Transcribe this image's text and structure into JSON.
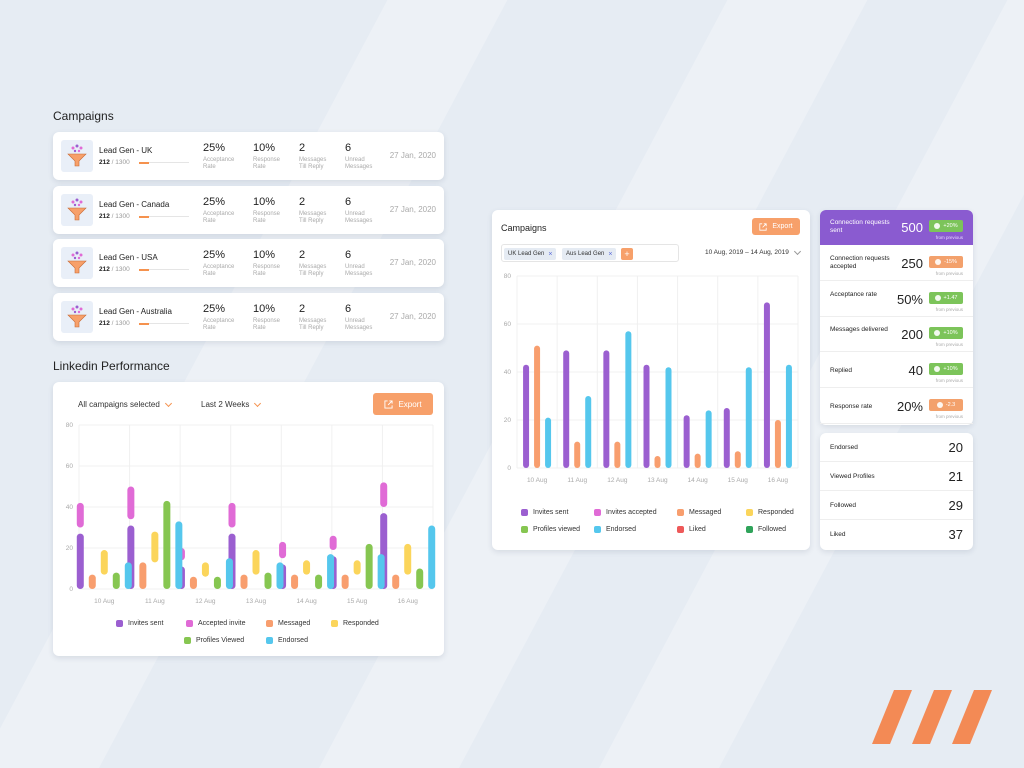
{
  "colors": {
    "invites": "#9b5fd0",
    "accepted": "#e06bd6",
    "messaged": "#f89e6e",
    "responded": "#fbd55b",
    "profiles": "#86c651",
    "endorsed": "#55c7ed",
    "liked": "#ee5959",
    "followed": "#2fa35a",
    "accent": "#f7a06a",
    "purple_header": "#8a5bd0"
  },
  "campaigns_section": {
    "title": "Campaigns",
    "rows": [
      {
        "name": "Lead Gen - UK",
        "count": "212",
        "total": "/ 1300",
        "s1v": "25%",
        "s1l1": "Acceptance",
        "s1l2": "Rate",
        "s2v": "10%",
        "s2l1": "Response",
        "s2l2": "Rate",
        "s3v": "2",
        "s3l1": "Messages",
        "s3l2": "Till Reply",
        "s4v": "6",
        "s4l1": "Unread",
        "s4l2": "Messages",
        "date": "27 Jan, 2020"
      },
      {
        "name": "Lead Gen - Canada",
        "count": "212",
        "total": "/ 1300",
        "s1v": "25%",
        "s1l1": "Acceptance",
        "s1l2": "Rate",
        "s2v": "10%",
        "s2l1": "Response",
        "s2l2": "Rate",
        "s3v": "2",
        "s3l1": "Messages",
        "s3l2": "Till Reply",
        "s4v": "6",
        "s4l1": "Unread",
        "s4l2": "Messages",
        "date": "27 Jan, 2020"
      },
      {
        "name": "Lead Gen - USA",
        "count": "212",
        "total": "/ 1300",
        "s1v": "25%",
        "s1l1": "Acceptance",
        "s1l2": "Rate",
        "s2v": "10%",
        "s2l1": "Response",
        "s2l2": "Rate",
        "s3v": "2",
        "s3l1": "Messages",
        "s3l2": "Till Reply",
        "s4v": "6",
        "s4l1": "Unread",
        "s4l2": "Messages",
        "date": "27 Jan, 2020"
      },
      {
        "name": "Lead Gen - Australia",
        "count": "212",
        "total": "/ 1300",
        "s1v": "25%",
        "s1l1": "Acceptance",
        "s1l2": "Rate",
        "s2v": "10%",
        "s2l1": "Response",
        "s2l2": "Rate",
        "s3v": "2",
        "s3l1": "Messages",
        "s3l2": "Till Reply",
        "s4v": "6",
        "s4l1": "Unread",
        "s4l2": "Messages",
        "date": "27 Jan, 2020"
      }
    ]
  },
  "linkedin_section": {
    "title": "Linkedin Performance",
    "filter_campaigns": "All campaigns selected",
    "filter_period": "Last 2 Weeks",
    "export_label": "Export"
  },
  "campaigns_panel": {
    "title": "Campaigns",
    "export_label": "Export",
    "chips": [
      "UK Lead Gen",
      "Aus Lead Gen"
    ],
    "add_label": "+",
    "date_range": "10 Aug, 2019 – 14 Aug, 2019"
  },
  "metrics": [
    {
      "label": "Connection requests sent",
      "value": "500",
      "badge": "+20%",
      "note": "from previous",
      "trend": "up"
    },
    {
      "label": "Connection requests accepted",
      "value": "250",
      "badge": "-15%",
      "note": "from previous",
      "trend": "down"
    },
    {
      "label": "Acceptance rate",
      "value": "50%",
      "badge": "+1.47",
      "note": "from previous",
      "trend": "up"
    },
    {
      "label": "Messages delivered",
      "value": "200",
      "badge": "+10%",
      "note": "from previous",
      "trend": "up"
    },
    {
      "label": "Replied",
      "value": "40",
      "badge": "+10%",
      "note": "from previous",
      "trend": "up"
    },
    {
      "label": "Response rate",
      "value": "20%",
      "badge": "-2.3",
      "note": "from previous",
      "trend": "down"
    }
  ],
  "counts": [
    {
      "label": "Endorsed",
      "value": "20"
    },
    {
      "label": "Viewed Profiles",
      "value": "21"
    },
    {
      "label": "Followed",
      "value": "29"
    },
    {
      "label": "Liked",
      "value": "37"
    }
  ],
  "chart_data": [
    {
      "type": "bar",
      "title": "Linkedin Performance",
      "categories": [
        "10 Aug",
        "11 Aug",
        "12 Aug",
        "13 Aug",
        "14 Aug",
        "15 Aug",
        "16 Aug"
      ],
      "ylim": [
        0,
        80
      ],
      "yticks": [
        0,
        20,
        40,
        60,
        80
      ],
      "series": [
        {
          "name": "Invites sent",
          "key": "invites",
          "ranges": [
            [
              0,
              27
            ],
            [
              0,
              31
            ],
            [
              0,
              11
            ],
            [
              0,
              27
            ],
            [
              0,
              12
            ],
            [
              0,
              16
            ],
            [
              0,
              37
            ]
          ],
          "caps": [
            42,
            50,
            20,
            42,
            23,
            26,
            52
          ]
        },
        {
          "name": "Accepted invite",
          "key": "accepted",
          "ranges": [
            [
              0,
              0
            ],
            [
              0,
              0
            ],
            [
              0,
              0
            ],
            [
              0,
              0
            ],
            [
              0,
              0
            ],
            [
              0,
              0
            ],
            [
              0,
              0
            ]
          ],
          "caps": [
            0,
            0,
            0,
            0,
            0,
            0,
            0
          ]
        },
        {
          "name": "Messaged",
          "key": "messaged",
          "ranges": [
            [
              0,
              7
            ],
            [
              0,
              13
            ],
            [
              0,
              6
            ],
            [
              0,
              7
            ],
            [
              0,
              7
            ],
            [
              0,
              7
            ],
            [
              0,
              7
            ]
          ],
          "caps": [
            0,
            0,
            0,
            0,
            0,
            0,
            0
          ]
        },
        {
          "name": "Responded",
          "key": "responded",
          "ranges": [
            [
              7,
              19
            ],
            [
              13,
              28
            ],
            [
              6,
              13
            ],
            [
              7,
              19
            ],
            [
              7,
              14
            ],
            [
              7,
              14
            ],
            [
              7,
              22
            ]
          ],
          "caps": [
            0,
            0,
            0,
            0,
            0,
            0,
            0
          ]
        },
        {
          "name": "Profiles Viewed",
          "key": "profiles",
          "ranges": [
            [
              0,
              8
            ],
            [
              0,
              43
            ],
            [
              0,
              6
            ],
            [
              0,
              8
            ],
            [
              0,
              7
            ],
            [
              0,
              22
            ],
            [
              0,
              10
            ]
          ],
          "caps": [
            0,
            0,
            0,
            0,
            0,
            0,
            0
          ]
        },
        {
          "name": "Endorsed",
          "key": "endorsed",
          "ranges": [
            [
              0,
              13
            ],
            [
              0,
              33
            ],
            [
              0,
              15
            ],
            [
              0,
              13
            ],
            [
              0,
              17
            ],
            [
              0,
              17
            ],
            [
              0,
              31
            ]
          ],
          "caps": [
            0,
            0,
            0,
            0,
            0,
            0,
            0
          ]
        }
      ],
      "legend": [
        "Invites sent",
        "Accepted invite",
        "Messaged",
        "Responded",
        "Profiles Viewed",
        "Endorsed"
      ]
    },
    {
      "type": "bar",
      "title": "Campaigns",
      "categories": [
        "10 Aug",
        "11 Aug",
        "12 Aug",
        "13 Aug",
        "14 Aug",
        "15 Aug",
        "16 Aug"
      ],
      "ylim": [
        0,
        80
      ],
      "yticks": [
        0,
        20,
        40,
        60,
        80
      ],
      "series": [
        {
          "name": "Invites sent",
          "key": "invites",
          "ranges": [
            [
              0,
              43
            ],
            [
              0,
              49
            ],
            [
              0,
              49
            ],
            [
              0,
              43
            ],
            [
              0,
              22
            ],
            [
              0,
              25
            ],
            [
              0,
              69
            ]
          ],
          "caps": []
        },
        {
          "name": "Messaged",
          "key": "messaged",
          "ranges": [
            [
              0,
              51
            ],
            [
              0,
              11
            ],
            [
              0,
              11
            ],
            [
              0,
              5
            ],
            [
              0,
              6
            ],
            [
              0,
              7
            ],
            [
              0,
              20
            ]
          ],
          "caps": []
        },
        {
          "name": "Responded",
          "key": "responded",
          "ranges": [
            [
              0,
              0
            ],
            [
              0,
              0
            ],
            [
              0,
              0
            ],
            [
              0,
              0
            ],
            [
              0,
              0
            ],
            [
              0,
              0
            ],
            [
              0,
              0
            ]
          ],
          "caps": []
        },
        {
          "name": "Endorsed",
          "key": "endorsed",
          "ranges": [
            [
              0,
              21
            ],
            [
              0,
              30
            ],
            [
              0,
              57
            ],
            [
              0,
              42
            ],
            [
              0,
              24
            ],
            [
              0,
              42
            ],
            [
              0,
              43
            ]
          ],
          "caps": []
        }
      ],
      "legend": [
        "Invites sent",
        "Invites accepted",
        "Messaged",
        "Responded",
        "Profiles viewed",
        "Endorsed",
        "Liked",
        "Followed"
      ]
    }
  ]
}
